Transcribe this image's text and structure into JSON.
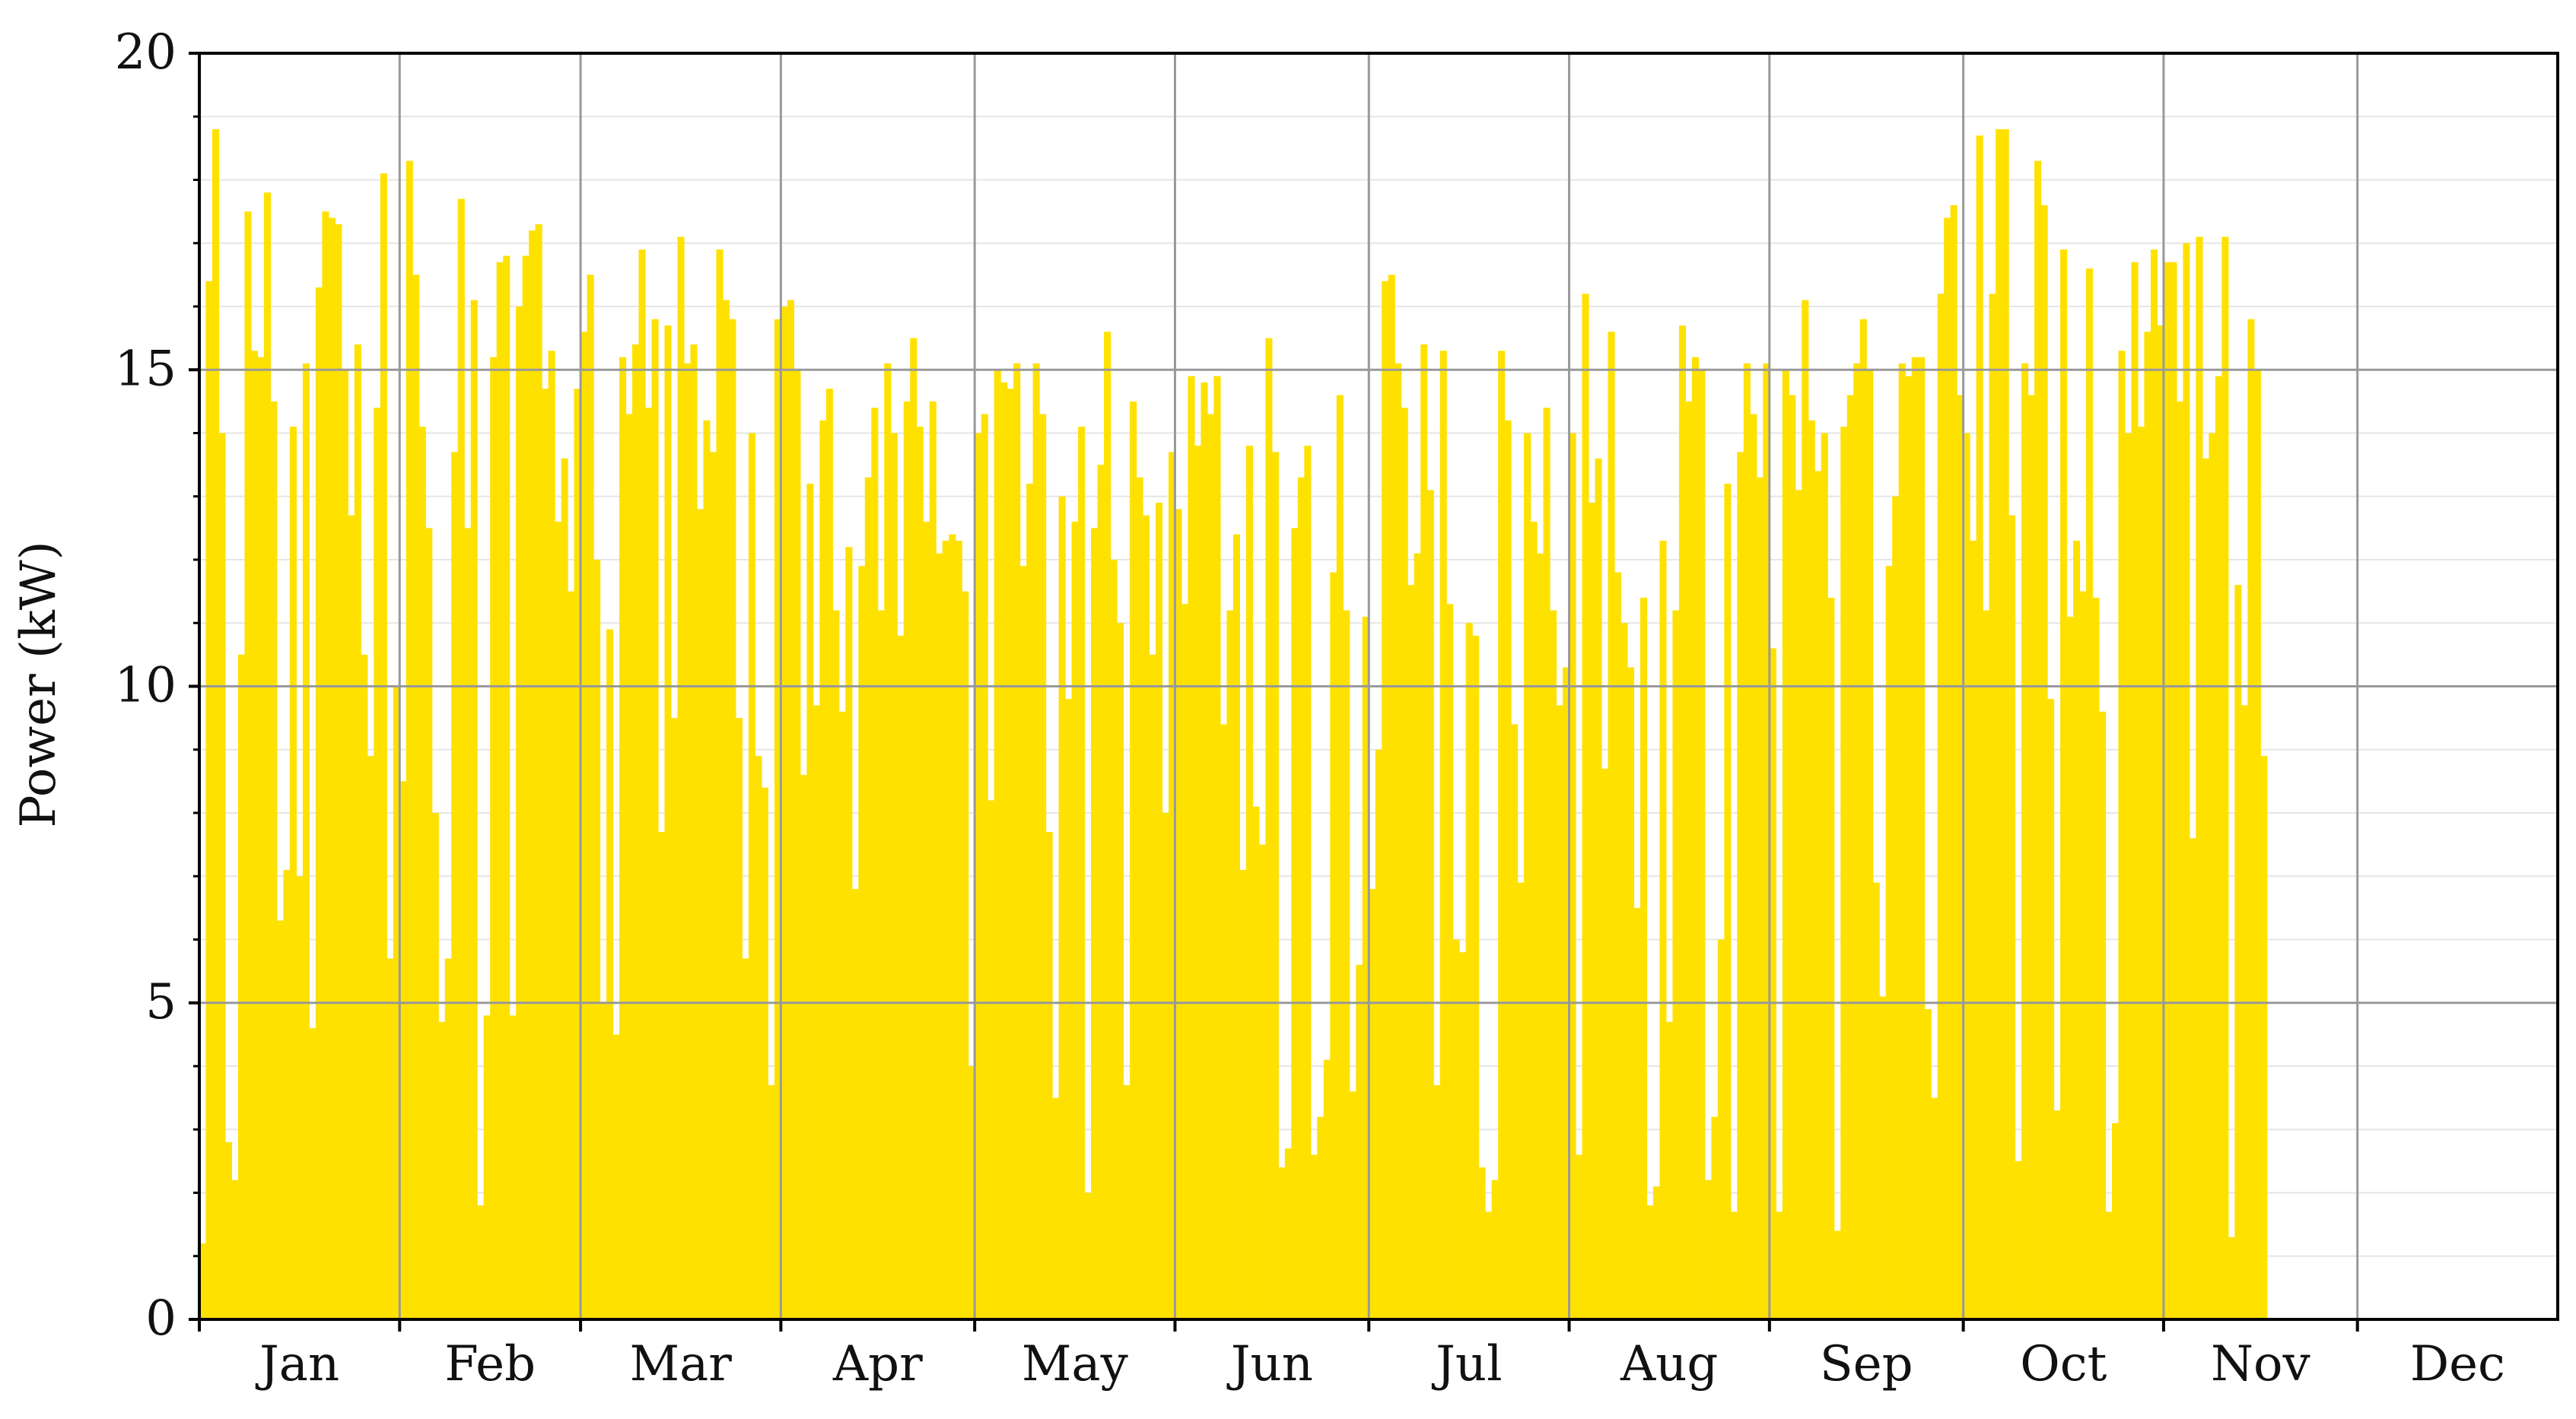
{
  "chart_data": {
    "type": "bar",
    "title": "",
    "xlabel": "",
    "ylabel": "Power (kW)",
    "ylim": [
      0,
      20
    ],
    "yticks": [
      0,
      5,
      10,
      15,
      20
    ],
    "y_minor_step": 1,
    "x_unit": "day of year",
    "xlim": [
      0,
      365
    ],
    "month_labels": [
      "Jan",
      "Feb",
      "Mar",
      "Apr",
      "May",
      "Jun",
      "Jul",
      "Aug",
      "Sep",
      "Oct",
      "Nov",
      "Dec"
    ],
    "month_start_days": [
      0,
      31,
      59,
      90,
      120,
      151,
      181,
      212,
      243,
      273,
      304,
      334
    ],
    "grid": true,
    "colors": {
      "bars": "#FFE100",
      "grid_major": "#999999",
      "grid_minor": "#e6e6e6",
      "axis": "#000000"
    },
    "series": [
      {
        "values": [
          1.2,
          16.4,
          18.8,
          14.0,
          2.8,
          2.2,
          10.5,
          17.5,
          15.3,
          15.2,
          17.8,
          14.5,
          6.3,
          7.1,
          14.1,
          7.0,
          15.1,
          4.6,
          16.3,
          17.5,
          17.4,
          17.3,
          15.0,
          12.7,
          15.4,
          10.5,
          8.9,
          14.4,
          18.1,
          5.7,
          10.0,
          8.5,
          18.3,
          16.5,
          14.1,
          12.5,
          8.0,
          4.7,
          5.7,
          13.7,
          17.7,
          12.5,
          16.1,
          1.8,
          4.8,
          15.2,
          16.7,
          16.8,
          4.8,
          16.0,
          16.8,
          17.2,
          17.3,
          14.7,
          15.3,
          12.6,
          13.6,
          11.5,
          14.7,
          15.6,
          16.5,
          12.0,
          5.0,
          10.9,
          4.5,
          15.2,
          14.3,
          15.4,
          16.9,
          14.4,
          15.8,
          7.7,
          15.7,
          9.5,
          17.1,
          15.1,
          15.4,
          12.8,
          14.2,
          13.7,
          16.9,
          16.1,
          15.8,
          9.5,
          5.7,
          14.0,
          8.9,
          8.4,
          3.7,
          15.8,
          16.0,
          16.1,
          15.0,
          8.6,
          13.2,
          9.7,
          14.2,
          14.7,
          11.2,
          9.6,
          12.2,
          6.8,
          11.9,
          13.3,
          14.4,
          11.2,
          15.1,
          14.0,
          10.8,
          14.5,
          15.5,
          14.1,
          12.6,
          14.5,
          12.1,
          12.3,
          12.4,
          12.3,
          11.5,
          4.0,
          14.0,
          14.3,
          8.2,
          15.0,
          14.8,
          14.7,
          15.1,
          11.9,
          13.2,
          15.1,
          14.3,
          7.7,
          3.5,
          13.0,
          9.8,
          12.6,
          14.1,
          2.0,
          12.5,
          13.5,
          15.6,
          12.0,
          11.0,
          3.7,
          14.5,
          13.3,
          12.7,
          10.5,
          12.9,
          8.0,
          13.7,
          12.8,
          11.3,
          14.9,
          13.8,
          14.8,
          14.3,
          14.9,
          9.4,
          11.2,
          12.4,
          7.1,
          13.8,
          8.1,
          7.5,
          15.5,
          13.7,
          2.4,
          2.7,
          12.5,
          13.3,
          13.8,
          2.6,
          3.2,
          4.1,
          11.8,
          14.6,
          11.2,
          3.6,
          5.6,
          11.1,
          6.8,
          9.0,
          16.4,
          16.5,
          15.1,
          14.4,
          11.6,
          12.1,
          15.4,
          13.1,
          3.7,
          15.3,
          11.3,
          6.0,
          5.8,
          11.0,
          10.8,
          2.4,
          1.7,
          2.2,
          15.3,
          14.2,
          9.4,
          6.9,
          14.0,
          12.6,
          12.1,
          14.4,
          11.2,
          9.7,
          10.3,
          14.0,
          2.6,
          16.2,
          12.9,
          13.6,
          8.7,
          15.6,
          11.8,
          11.0,
          10.3,
          6.5,
          11.4,
          1.8,
          2.1,
          12.3,
          4.7,
          11.2,
          15.7,
          14.5,
          15.2,
          15.0,
          2.2,
          3.2,
          6.0,
          13.2,
          1.7,
          13.7,
          15.1,
          14.3,
          13.3,
          15.1,
          10.6,
          1.7,
          15.0,
          14.6,
          13.1,
          16.1,
          14.2,
          13.4,
          14.0,
          11.4,
          1.4,
          14.1,
          14.6,
          15.1,
          15.8,
          15.0,
          6.9,
          5.1,
          11.9,
          13.0,
          15.1,
          14.9,
          15.2,
          15.2,
          4.9,
          3.5,
          16.2,
          17.4,
          17.6,
          14.6,
          14.0,
          12.3,
          18.7,
          11.2,
          16.2,
          18.8,
          18.8,
          12.7,
          2.5,
          15.1,
          14.6,
          18.3,
          17.6,
          9.8,
          3.3,
          16.9,
          11.1,
          12.3,
          11.5,
          16.6,
          11.4,
          9.6,
          1.7,
          3.1,
          15.3,
          14.0,
          16.7,
          14.1,
          15.6,
          16.9,
          15.7,
          16.7,
          16.7,
          14.5,
          17.0,
          7.6,
          17.1,
          13.6,
          14.0,
          14.9,
          17.1,
          1.3,
          11.6,
          9.7,
          15.8,
          15.0,
          8.9
        ]
      }
    ]
  }
}
